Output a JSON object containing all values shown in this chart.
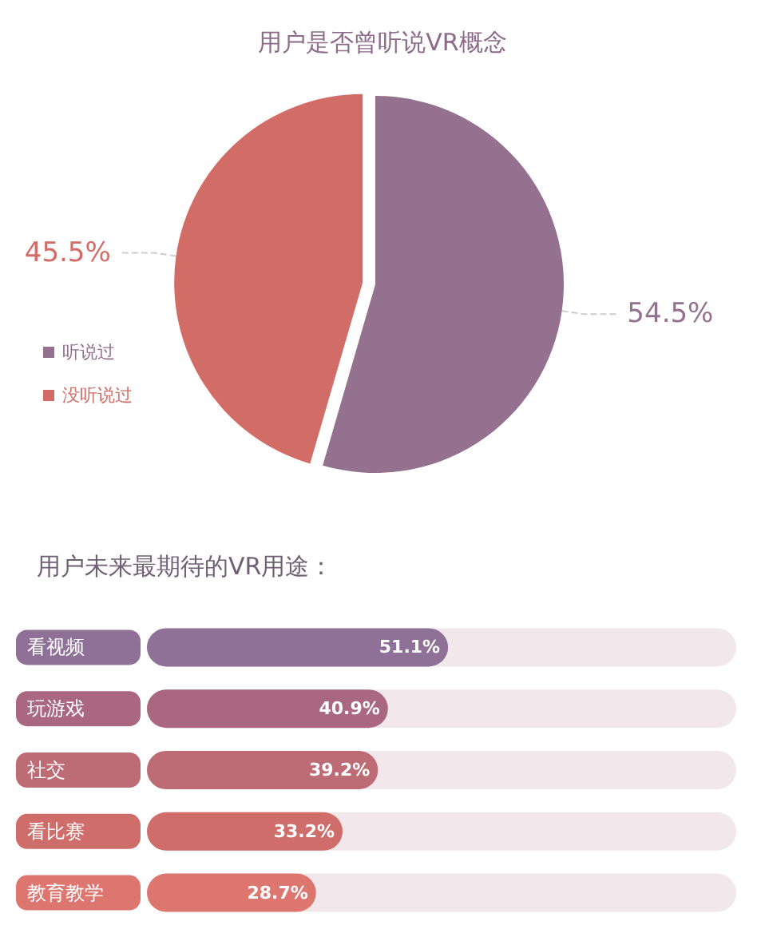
{
  "chart_data": [
    {
      "type": "pie",
      "title": "用户是否曾听说VR概念",
      "categories": [
        "听说过",
        "没听说过"
      ],
      "values": [
        54.5,
        45.5
      ],
      "colors": [
        "#94718f",
        "#d16d66"
      ],
      "value_labels": [
        "54.5%",
        "45.5%"
      ],
      "legend": "left"
    },
    {
      "type": "bar",
      "orientation": "horizontal",
      "title": "用户未来最期待的VR用途：",
      "categories": [
        "看视频",
        "玩游戏",
        "社交",
        "看比赛",
        "教育教学"
      ],
      "values": [
        51.1,
        40.9,
        39.2,
        33.2,
        28.7
      ],
      "colors": [
        "#8f7097",
        "#a9687f",
        "#bd6b74",
        "#cf6d6a",
        "#de7670"
      ],
      "value_labels": [
        "51.1%",
        "40.9%",
        "39.2%",
        "33.2%",
        "28.7%"
      ],
      "xlim": [
        0,
        100
      ],
      "tick_labels": false
    }
  ]
}
